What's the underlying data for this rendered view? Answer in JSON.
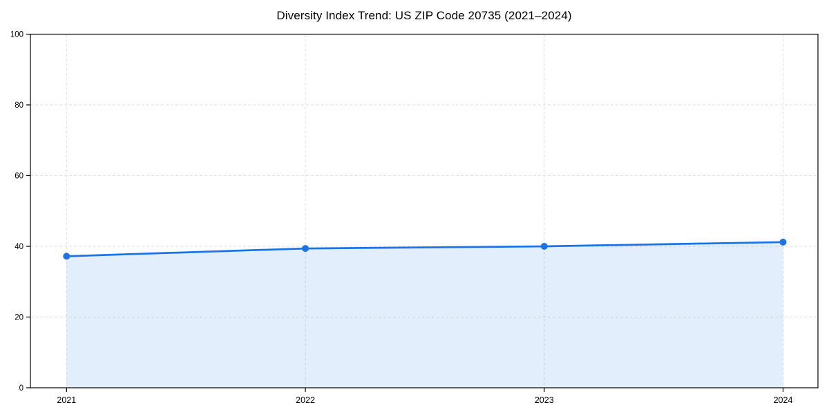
{
  "chart_data": {
    "type": "line",
    "title": "Diversity Index Trend: US ZIP Code 20735 (2021–2024)",
    "categories": [
      "2021",
      "2022",
      "2023",
      "2024"
    ],
    "series": [
      {
        "name": "Diversity Index",
        "values": [
          37.2,
          39.4,
          40.0,
          41.2
        ]
      }
    ],
    "xlabel": "",
    "ylabel": "",
    "ylim": [
      0,
      100
    ],
    "yticks": [
      0,
      20,
      40,
      60,
      80,
      100
    ],
    "grid": "dashed, horizontal and vertical",
    "legend": "none",
    "area_fill": true,
    "marker": "circle",
    "colors": {
      "line": "#1a73e8",
      "marker": "#1a73e8",
      "area_fill": "rgba(26,115,232,0.12)",
      "gridline": "#dedede",
      "axis": "#000000",
      "text": "#000000",
      "background": "#ffffff"
    }
  }
}
